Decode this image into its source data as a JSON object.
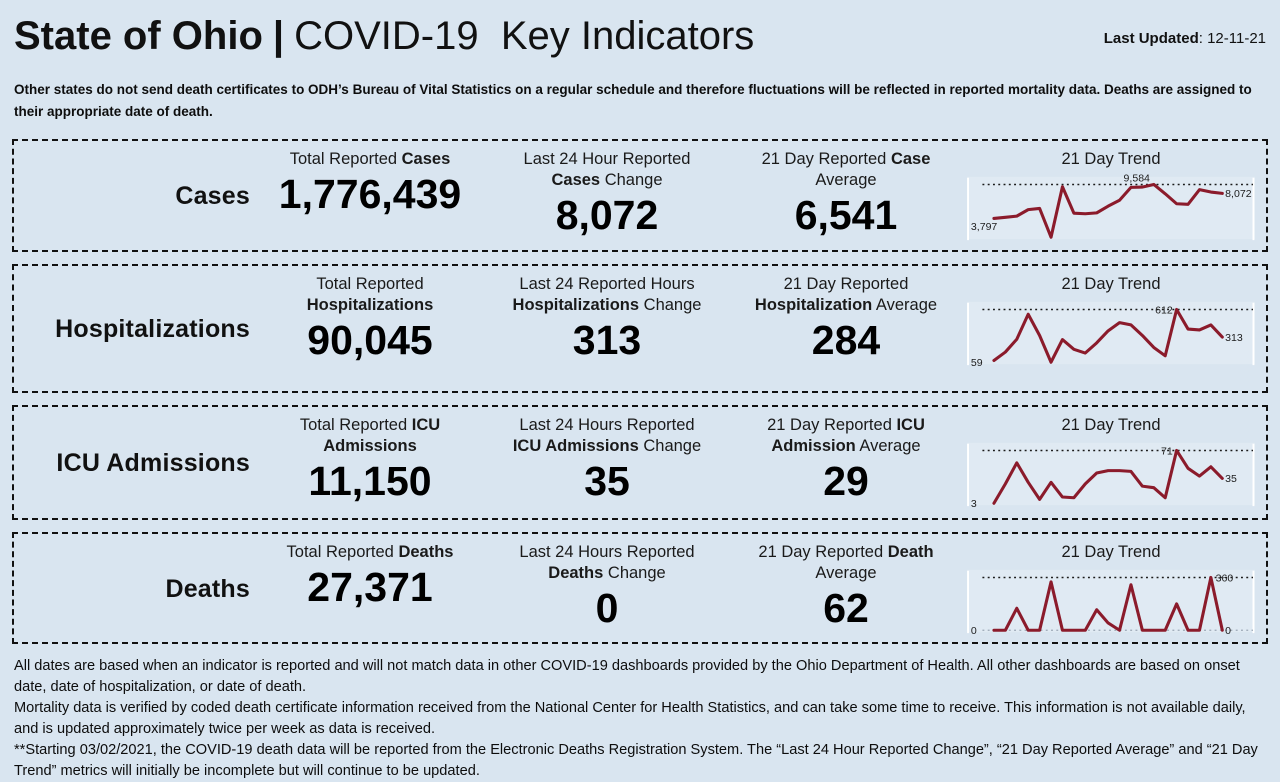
{
  "page": {
    "background_color": "#d9e5f0",
    "trend_line_color": "#8B1B2B",
    "border_style": "black dashed"
  },
  "header": {
    "title_bold": "State of Ohio",
    "title_separator": "|",
    "title_rest": "COVID-19  Key Indicators",
    "last_updated_label": "Last Updated",
    "last_updated_value": ": 12-11-21"
  },
  "notice": "Other states do not send death certificates to ODH’s Bureau of Vital Statistics on a regular schedule and therefore fluctuations will be reflected in reported mortality data. Deaths are assigned to their appropriate date of death.",
  "rows": [
    {
      "label": "Cases",
      "stats": [
        {
          "key": "total",
          "header_lines": [
            [
              [
                "Total Reported ",
                false
              ],
              [
                "Cases",
                true
              ]
            ]
          ],
          "value": "1,776,439"
        },
        {
          "key": "change",
          "header_lines": [
            [
              [
                "Last 24 Hour Reported",
                false
              ]
            ],
            [
              [
                "Cases",
                true
              ],
              [
                " Change",
                false
              ]
            ]
          ],
          "value": "8,072"
        },
        {
          "key": "average",
          "header_lines": [
            [
              [
                "21 Day Reported ",
                false
              ],
              [
                "Case",
                true
              ]
            ],
            [
              [
                "Average",
                false
              ]
            ]
          ],
          "value": "6,541"
        }
      ],
      "trend_title": "21 Day Trend"
    },
    {
      "label": "Hospitalizations",
      "stats": [
        {
          "key": "total",
          "header_lines": [
            [
              [
                "Total Reported",
                false
              ]
            ],
            [
              [
                "Hospitalizations",
                true
              ]
            ]
          ],
          "value": "90,045"
        },
        {
          "key": "change",
          "header_lines": [
            [
              [
                "Last 24 Reported Hours",
                false
              ]
            ],
            [
              [
                "Hospitalizations",
                true
              ],
              [
                " Change",
                false
              ]
            ]
          ],
          "value": "313"
        },
        {
          "key": "average",
          "header_lines": [
            [
              [
                "21 Day Reported",
                false
              ]
            ],
            [
              [
                "Hospitalization",
                true
              ],
              [
                " Average",
                false
              ]
            ]
          ],
          "value": "284"
        }
      ],
      "trend_title": "21 Day Trend"
    },
    {
      "label": "ICU Admissions",
      "stats": [
        {
          "key": "total",
          "header_lines": [
            [
              [
                "Total Reported ",
                false
              ],
              [
                "ICU",
                true
              ]
            ],
            [
              [
                "Admissions",
                true
              ]
            ]
          ],
          "value": "11,150"
        },
        {
          "key": "change",
          "header_lines": [
            [
              [
                "Last 24 Hours Reported",
                false
              ]
            ],
            [
              [
                "ICU Admissions",
                true
              ],
              [
                " Change",
                false
              ]
            ]
          ],
          "value": "35"
        },
        {
          "key": "average",
          "header_lines": [
            [
              [
                "21 Day Reported ",
                false
              ],
              [
                "ICU",
                true
              ]
            ],
            [
              [
                "Admission",
                true
              ],
              [
                " Average",
                false
              ]
            ]
          ],
          "value": "29"
        }
      ],
      "trend_title": "21 Day Trend"
    },
    {
      "label": "Deaths",
      "stats": [
        {
          "key": "total",
          "header_lines": [
            [
              [
                "Total Reported ",
                false
              ],
              [
                "Deaths",
                true
              ]
            ]
          ],
          "value": "27,371"
        },
        {
          "key": "change",
          "header_lines": [
            [
              [
                "Last 24 Hours Reported",
                false
              ]
            ],
            [
              [
                "Deaths",
                true
              ],
              [
                " Change",
                false
              ]
            ]
          ],
          "value": "0"
        },
        {
          "key": "average",
          "header_lines": [
            [
              [
                "21 Day Reported ",
                false
              ],
              [
                "Death",
                true
              ]
            ],
            [
              [
                "Average",
                false
              ]
            ]
          ],
          "value": "62"
        }
      ],
      "trend_title": "21 Day Trend"
    }
  ],
  "chart_data": [
    {
      "type": "line",
      "title": "21 Day Trend",
      "series_label": "Cases (daily reported, 21 days)",
      "values": [
        3797,
        4000,
        4200,
        5300,
        5500,
        600,
        9200,
        4700,
        4600,
        4750,
        5900,
        6900,
        9100,
        9150,
        9584,
        8000,
        6300,
        6200,
        8700,
        8300,
        8072
      ],
      "start_label": "3,797",
      "peak_label": "9,584",
      "end_label": "8,072",
      "ylim": [
        600,
        9584
      ],
      "grid": "dotted max line",
      "color": "#8B1B2B",
      "peak_label_above": true,
      "peak_label_side": "left",
      "baseline_dotted": false
    },
    {
      "type": "line",
      "title": "21 Day Trend",
      "series_label": "Hospitalizations (daily reported, 21 days)",
      "values": [
        59,
        150,
        290,
        560,
        330,
        40,
        285,
        180,
        140,
        250,
        380,
        470,
        445,
        330,
        200,
        110,
        612,
        400,
        390,
        445,
        313
      ],
      "start_label": "59",
      "peak_label": "612",
      "end_label": "313",
      "ylim": [
        40,
        612
      ],
      "grid": "dotted max line",
      "color": "#8B1B2B",
      "peak_label_above": false,
      "peak_label_side": "left",
      "baseline_dotted": false
    },
    {
      "type": "line",
      "title": "21 Day Trend",
      "series_label": "ICU Admissions (daily reported, 21 days)",
      "values": [
        3,
        28,
        55,
        30,
        8,
        30,
        11,
        10,
        28,
        42,
        45,
        45,
        44,
        25,
        23,
        10,
        71,
        48,
        38,
        50,
        35
      ],
      "start_label": "3",
      "peak_label": "71",
      "end_label": "35",
      "ylim": [
        3,
        71
      ],
      "grid": "dotted max line",
      "color": "#8B1B2B",
      "peak_label_above": false,
      "peak_label_side": "left",
      "baseline_dotted": false
    },
    {
      "type": "line",
      "title": "21 Day Trend",
      "series_label": "Deaths (daily reported, 21 days)",
      "values": [
        0,
        0,
        150,
        0,
        0,
        330,
        0,
        0,
        0,
        140,
        50,
        0,
        310,
        0,
        0,
        0,
        180,
        0,
        0,
        360,
        0
      ],
      "start_label": "0",
      "peak_label": "360",
      "end_label": "0",
      "ylim": [
        0,
        360
      ],
      "grid": "dotted max and baseline lines",
      "color": "#8B1B2B",
      "peak_label_above": false,
      "peak_label_side": "right",
      "baseline_dotted": true
    }
  ],
  "footer": {
    "paragraphs": [
      "All dates are based when an indicator is reported and will not match data in other COVID-19 dashboards provided by the Ohio Department of Health. All other dashboards are based on onset date, date of hospitalization, or date of death.",
      "Mortality data is verified by coded death certificate information received from the National Center for Health Statistics, and can take some time to receive. This information is not available daily, and is updated approximately twice per week as data is received.",
      "**Starting 03/02/2021, the COVID-19 death data will be reported from the Electronic Deaths Registration System. The “Last 24 Hour Reported Change”, “21 Day Reported Average” and “21 Day Trend” metrics will initially be incomplete but will continue to be updated."
    ]
  }
}
